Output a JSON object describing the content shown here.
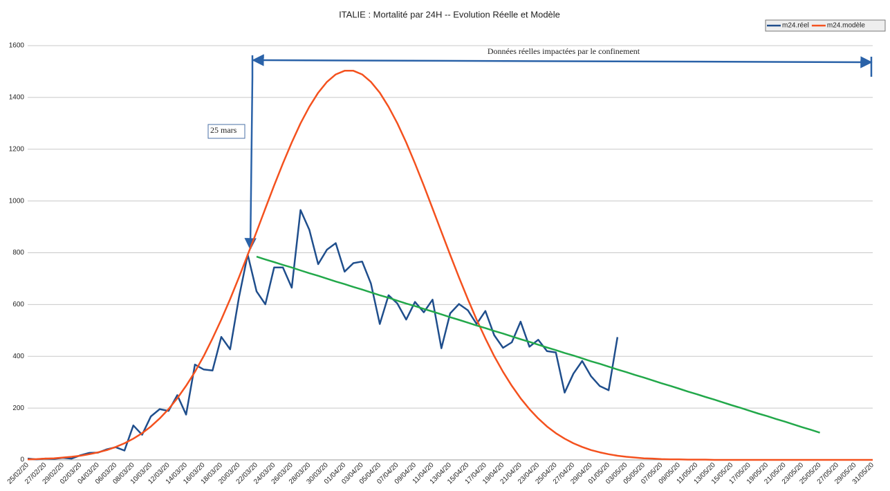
{
  "chart_data": {
    "type": "line",
    "title": "ITALIE : Mortalité par 24H  -- Evolution Réelle  et Modèle",
    "categories": [
      "25/02/20",
      null,
      "27/02/20",
      null,
      "29/02/20",
      null,
      "02/03/20",
      null,
      "04/03/20",
      null,
      "06/03/20",
      null,
      "08/03/20",
      null,
      "10/03/20",
      null,
      "12/03/20",
      null,
      "14/03/20",
      null,
      "16/03/20",
      null,
      "18/03/20",
      null,
      "20/03/20",
      null,
      "22/03/20",
      null,
      "24/03/20",
      null,
      "26/03/20",
      null,
      "28/03/20",
      null,
      "30/03/20",
      null,
      "01/04/20",
      null,
      "03/04/20",
      null,
      "05/04/20",
      null,
      "07/04/20",
      null,
      "09/04/20",
      null,
      "11/04/20",
      null,
      "13/04/20",
      null,
      "15/04/20",
      null,
      "17/04/20",
      null,
      "19/04/20",
      null,
      "21/04/20",
      null,
      "23/04/20",
      null,
      "25/04/20",
      null,
      "27/04/20",
      null,
      "29/04/20",
      null,
      "01/05/20",
      null,
      "03/05/20",
      null,
      "05/05/20",
      null,
      "07/05/20",
      null,
      "09/05/20",
      null,
      "11/05/20",
      null,
      "13/05/20",
      null,
      "15/05/20",
      null,
      "17/05/20",
      null,
      "19/05/20",
      null,
      "21/05/20",
      null,
      "23/05/20",
      null,
      "25/05/20",
      null,
      "27/05/20",
      null,
      "29/05/20",
      null,
      "31/05/20"
    ],
    "series": [
      {
        "name": "m24.réel",
        "color": "#1f4e8c",
        "values": [
          5,
          2,
          5,
          4,
          8,
          5,
          18,
          27,
          28,
          41,
          49,
          36,
          133,
          97,
          168,
          196,
          189,
          250,
          175,
          368,
          349,
          345,
          475,
          427,
          627,
          793,
          651,
          601,
          743,
          743,
          665,
          965,
          889,
          756,
          812,
          837,
          727,
          760,
          766,
          681,
          525,
          636,
          604,
          542,
          610,
          570,
          619,
          431,
          566,
          602,
          578,
          525,
          575,
          482,
          433,
          454,
          534,
          437,
          464,
          420,
          415,
          260,
          333,
          382,
          323,
          285,
          269,
          474,
          null,
          null,
          null,
          null,
          null,
          null,
          null,
          null,
          null,
          null,
          null,
          null,
          null,
          null,
          null,
          null,
          null,
          null,
          null,
          null,
          null,
          null,
          null,
          null,
          null,
          null,
          null,
          null,
          null
        ]
      },
      {
        "name": "m24.modèle",
        "color": "#f4511e",
        "values": [
          2,
          3,
          5,
          6,
          9,
          12,
          16,
          22,
          29,
          38,
          50,
          64,
          82,
          103,
          129,
          160,
          196,
          238,
          286,
          340,
          401,
          469,
          542,
          621,
          705,
          792,
          881,
          971,
          1060,
          1145,
          1226,
          1300,
          1364,
          1418,
          1460,
          1489,
          1503,
          1503,
          1489,
          1460,
          1418,
          1364,
          1300,
          1226,
          1145,
          1060,
          971,
          881,
          792,
          705,
          621,
          542,
          469,
          401,
          340,
          286,
          238,
          196,
          160,
          129,
          103,
          82,
          64,
          50,
          38,
          29,
          22,
          16,
          12,
          9,
          6,
          5,
          3,
          2,
          2,
          1,
          1,
          1,
          0,
          0,
          0,
          0,
          0,
          0,
          0,
          0,
          0,
          0,
          0,
          0,
          0,
          0,
          0,
          0,
          0,
          0,
          0
        ]
      },
      {
        "color": "#22a84a",
        "values": [
          null,
          null,
          null,
          null,
          null,
          null,
          null,
          null,
          null,
          null,
          null,
          null,
          null,
          null,
          null,
          null,
          null,
          null,
          null,
          null,
          null,
          null,
          null,
          null,
          null,
          null,
          785,
          774,
          764,
          753,
          743,
          732,
          721,
          711,
          700,
          689,
          679,
          668,
          658,
          647,
          636,
          626,
          615,
          604,
          594,
          583,
          573,
          562,
          551,
          541,
          530,
          519,
          509,
          498,
          488,
          477,
          466,
          456,
          445,
          434,
          424,
          413,
          403,
          392,
          381,
          371,
          360,
          349,
          339,
          328,
          318,
          307,
          296,
          286,
          275,
          264,
          254,
          243,
          233,
          222,
          211,
          201,
          190,
          179,
          169,
          158,
          148,
          137,
          126,
          116,
          105,
          null,
          null,
          null,
          null,
          null,
          null
        ]
      }
    ],
    "ylim": [
      0,
      1600
    ],
    "yticks": [
      0,
      200,
      400,
      600,
      800,
      1000,
      1200,
      1400,
      1600
    ],
    "grid": true,
    "legend": "top-right",
    "annotations": [
      "Données réelles impactées par le confinement",
      "25 mars"
    ]
  }
}
